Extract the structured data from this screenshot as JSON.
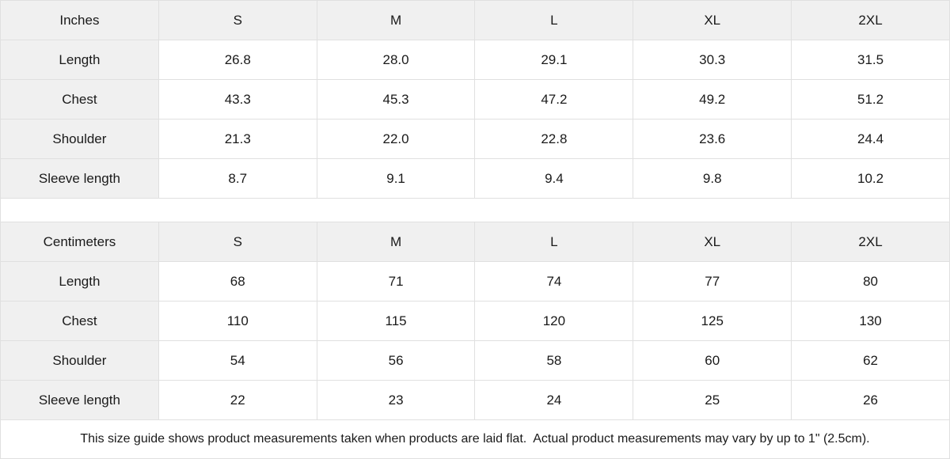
{
  "chart_data": [
    {
      "type": "table",
      "unit": "Inches",
      "columns": [
        "Inches",
        "S",
        "M",
        "L",
        "XL",
        "2XL"
      ],
      "rows": [
        [
          "Length",
          "26.8",
          "28.0",
          "29.1",
          "30.3",
          "31.5"
        ],
        [
          "Chest",
          "43.3",
          "45.3",
          "47.2",
          "49.2",
          "51.2"
        ],
        [
          "Shoulder",
          "21.3",
          "22.0",
          "22.8",
          "23.6",
          "24.4"
        ],
        [
          "Sleeve length",
          "8.7",
          "9.1",
          "9.4",
          "9.8",
          "10.2"
        ]
      ]
    },
    {
      "type": "table",
      "unit": "Centimeters",
      "columns": [
        "Centimeters",
        "S",
        "M",
        "L",
        "XL",
        "2XL"
      ],
      "rows": [
        [
          "Length",
          "68",
          "71",
          "74",
          "77",
          "80"
        ],
        [
          "Chest",
          "110",
          "115",
          "120",
          "125",
          "130"
        ],
        [
          "Shoulder",
          "54",
          "56",
          "58",
          "60",
          "62"
        ],
        [
          "Sleeve length",
          "22",
          "23",
          "24",
          "25",
          "26"
        ]
      ]
    }
  ],
  "footer": {
    "note": "This size guide shows product measurements taken when products are laid flat.  Actual product measurements may vary by up to 1\" (2.5cm)."
  },
  "colors": {
    "header_bg": "#f0f0f0",
    "border": "#e0e0e0",
    "text": "#1a1a1a",
    "background": "#ffffff"
  }
}
